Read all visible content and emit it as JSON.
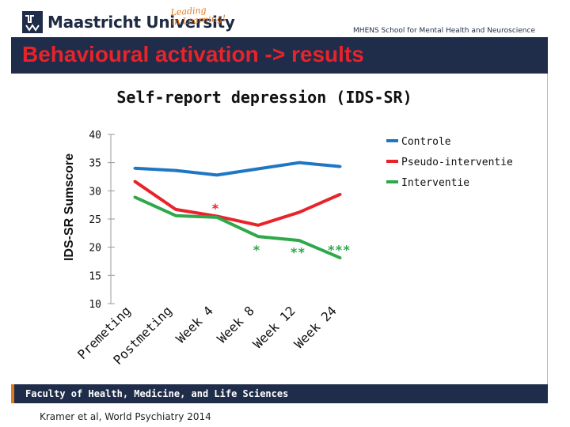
{
  "header": {
    "logo_text": "Maastricht University",
    "slogan_line1": "Leading",
    "slogan_line2": "in Learning!",
    "school": "MHENS School for Mental Health and Neuroscience"
  },
  "slide_title": "Behavioural activation -> results",
  "footer": {
    "faculty": "Faculty of Health, Medicine, and Life Sciences",
    "citation": "Kramer et al, World Psychiatry 2014"
  },
  "chart_data": {
    "type": "line",
    "title": "Self-report depression (IDS-SR)",
    "ylabel": "IDS-SR Sumscore",
    "xlabel": "",
    "ylim": [
      10,
      40
    ],
    "yticks": [
      40,
      35,
      30,
      25,
      20,
      15,
      10
    ],
    "categories": [
      "Premeting",
      "Postmeting",
      "Week 4",
      "Week 8",
      "Week 12",
      "Week 24"
    ],
    "series": [
      {
        "name": "Controle",
        "color": "#1f77c4",
        "values": [
          34.0,
          33.6,
          32.8,
          33.9,
          35.0,
          34.3
        ]
      },
      {
        "name": "Pseudo-interventie",
        "color": "#e8232a",
        "values": [
          31.7,
          26.7,
          25.5,
          23.9,
          26.2,
          29.4
        ]
      },
      {
        "name": "Interventie",
        "color": "#2ea84a",
        "values": [
          28.9,
          25.6,
          25.3,
          21.9,
          21.2,
          18.1
        ]
      }
    ],
    "annotations": [
      {
        "text": "*",
        "color": "#e8232a",
        "x": "Week 4",
        "y": 27.4
      },
      {
        "text": "*",
        "color": "#2ea84a",
        "x": "Week 8",
        "y": 20.0
      },
      {
        "text": "**",
        "color": "#2ea84a",
        "x": "Week 12",
        "y": 19.6
      },
      {
        "text": "***",
        "color": "#2ea84a",
        "x": "Week 24",
        "y": 20.0
      }
    ],
    "legend_position": "top-right",
    "grid": false
  }
}
